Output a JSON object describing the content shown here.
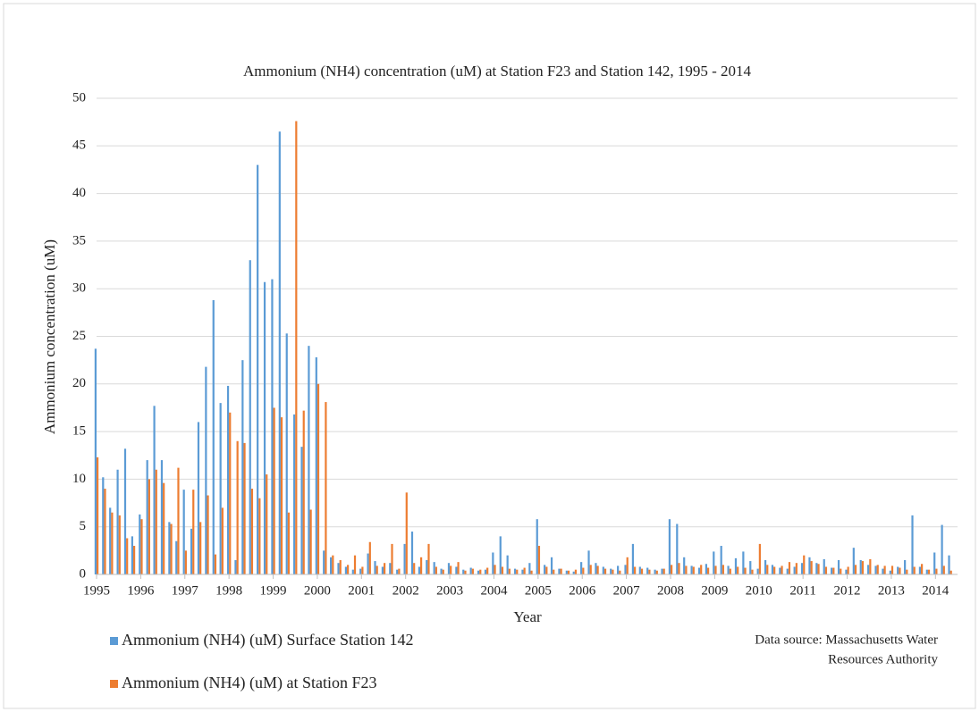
{
  "chart_data": {
    "type": "bar",
    "title": "Ammonium (NH4) concentration (uM) at Station F23 and Station 142, 1995 - 2014",
    "x_label": "Year",
    "y_label": "Ammonium concentration (uM)",
    "source": [
      "Data source: Massachusetts Water",
      "Resources Authority"
    ],
    "x": [
      1995,
      1995.17,
      1995.33,
      1995.5,
      1995.67,
      1995.83,
      1996,
      1996.17,
      1996.33,
      1996.5,
      1996.67,
      1996.83,
      1997,
      1997.17,
      1997.33,
      1997.5,
      1997.67,
      1997.83,
      1998,
      1998.17,
      1998.33,
      1998.5,
      1998.67,
      1998.83,
      1999,
      1999.17,
      1999.33,
      1999.5,
      1999.67,
      1999.83,
      2000,
      2000.17,
      2000.33,
      2000.5,
      2000.67,
      2000.83,
      2001,
      2001.17,
      2001.33,
      2001.5,
      2001.67,
      2001.83,
      2002,
      2002.17,
      2002.33,
      2002.5,
      2002.67,
      2002.83,
      2003,
      2003.17,
      2003.33,
      2003.5,
      2003.67,
      2003.83,
      2004,
      2004.17,
      2004.33,
      2004.5,
      2004.67,
      2004.83,
      2005,
      2005.17,
      2005.33,
      2005.5,
      2005.67,
      2005.83,
      2006,
      2006.17,
      2006.33,
      2006.5,
      2006.67,
      2006.83,
      2007,
      2007.17,
      2007.33,
      2007.5,
      2007.67,
      2007.83,
      2008,
      2008.17,
      2008.33,
      2008.5,
      2008.67,
      2008.83,
      2009,
      2009.17,
      2009.33,
      2009.5,
      2009.67,
      2009.83,
      2010,
      2010.17,
      2010.33,
      2010.5,
      2010.67,
      2010.83,
      2011,
      2011.17,
      2011.33,
      2011.5,
      2011.67,
      2011.83,
      2012,
      2012.17,
      2012.33,
      2012.5,
      2012.67,
      2012.83,
      2013,
      2013.17,
      2013.33,
      2013.5,
      2013.67,
      2013.83,
      2014,
      2014.17,
      2014.33
    ],
    "series": [
      {
        "name": "Ammonium (NH4) (uM) Surface Station 142",
        "color": "#5b9bd5",
        "values": [
          23.7,
          10.2,
          7,
          11,
          13.2,
          4,
          6.3,
          12,
          17.7,
          12,
          5.5,
          3.5,
          8.9,
          4.8,
          16,
          21.8,
          28.8,
          18,
          19.8,
          1.5,
          22.5,
          33,
          43,
          30.7,
          31,
          46.5,
          25.3,
          16.8,
          13.4,
          24,
          22.8,
          2.5,
          1.8,
          1.2,
          0.8,
          0.5,
          0.6,
          2.2,
          1.4,
          0.8,
          1.2,
          0.5,
          3.2,
          4.5,
          0.8,
          1.5,
          1.3,
          0.6,
          1.2,
          0.8,
          0.5,
          0.7,
          0.4,
          0.5,
          2.3,
          4,
          2,
          0.6,
          0.5,
          1.2,
          5.8,
          1,
          1.8,
          0.6,
          0.4,
          0.3,
          1.3,
          2.5,
          1.2,
          0.8,
          0.6,
          0.9,
          1,
          3.2,
          0.8,
          0.7,
          0.5,
          0.6,
          5.8,
          5.3,
          1.8,
          0.9,
          0.7,
          1.1,
          2.4,
          3,
          0.9,
          1.7,
          2.4,
          1.4,
          0.6,
          1.5,
          1,
          0.7,
          0.6,
          0.8,
          1.2,
          1.8,
          1.2,
          1.6,
          0.7,
          1.5,
          0.5,
          2.8,
          1.5,
          1,
          0.9,
          0.6,
          0.4,
          0.8,
          1.5,
          6.2,
          0.8,
          0.5,
          2.3,
          5.2,
          2
        ]
      },
      {
        "name": "Ammonium (NH4) (uM) at Station F23",
        "color": "#ed7d31",
        "values": [
          12.3,
          9,
          6.5,
          6.2,
          3.8,
          3,
          5.8,
          10,
          11,
          9.6,
          5.3,
          11.2,
          2.5,
          8.9,
          5.5,
          8.3,
          2.1,
          7,
          17,
          14,
          13.8,
          9,
          8,
          10.5,
          17.5,
          16.5,
          6.5,
          47.6,
          17.2,
          6.8,
          20,
          18.1,
          2,
          1.5,
          1,
          2,
          0.8,
          3.4,
          0.9,
          1.2,
          3.2,
          0.6,
          8.6,
          1.2,
          1.8,
          3.2,
          0.8,
          0.5,
          0.9,
          1.3,
          0.4,
          0.6,
          0.5,
          0.7,
          1,
          0.8,
          0.6,
          0.5,
          0.7,
          0.4,
          3,
          0.8,
          0.5,
          0.6,
          0.4,
          0.5,
          0.7,
          1,
          0.9,
          0.6,
          0.5,
          0.4,
          1.8,
          0.8,
          0.6,
          0.5,
          0.4,
          0.6,
          1,
          1.2,
          0.9,
          0.8,
          1,
          0.7,
          0.9,
          1,
          0.6,
          0.8,
          0.7,
          0.5,
          3.2,
          1,
          0.8,
          0.9,
          1.3,
          1.2,
          2,
          1.4,
          1.1,
          0.8,
          0.7,
          0.6,
          0.8,
          1,
          1.4,
          1.6,
          1,
          0.9,
          0.9,
          0.7,
          0.5,
          0.8,
          1.1,
          0.5,
          0.6,
          0.9,
          0.4
        ]
      }
    ],
    "xlim": [
      1995,
      2014.5
    ],
    "xticks": [
      1995,
      1996,
      1997,
      1998,
      1999,
      2000,
      2001,
      2002,
      2003,
      2004,
      2005,
      2006,
      2007,
      2008,
      2009,
      2010,
      2011,
      2012,
      2013,
      2014
    ],
    "ylim": [
      0,
      50
    ],
    "yticks": [
      0,
      5,
      10,
      15,
      20,
      25,
      30,
      35,
      40,
      45,
      50
    ],
    "grid": true
  }
}
